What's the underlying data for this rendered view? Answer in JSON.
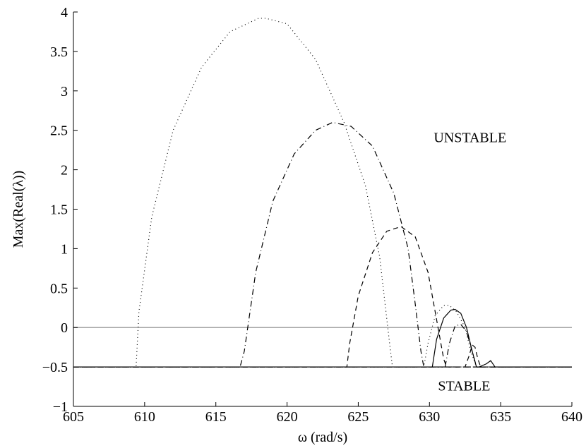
{
  "chart_data": {
    "type": "line",
    "title": "",
    "xlabel": "ω (rad/s)",
    "ylabel": "Max(Real(λ))",
    "xlim": [
      605,
      640
    ],
    "ylim": [
      -1,
      4
    ],
    "x_ticks": [
      605,
      610,
      615,
      620,
      625,
      630,
      635,
      640
    ],
    "y_ticks": [
      -1,
      -0.5,
      0,
      0.5,
      1,
      1.5,
      2,
      2.5,
      3,
      3.5,
      4
    ],
    "x_tick_labels": [
      "605",
      "610",
      "615",
      "620",
      "625",
      "630",
      "635",
      "640"
    ],
    "y_tick_labels": [
      "−1",
      "−0.5",
      "0",
      "0.5",
      "1",
      "1.5",
      "2",
      "2.5",
      "3",
      "3.5",
      "4"
    ],
    "grid": false,
    "legend": "none",
    "reference_line": {
      "y": 0,
      "color": "#a6a6a6"
    },
    "annotations": [
      {
        "text": "UNSTABLE",
        "x": 630.3,
        "y": 2.35
      },
      {
        "text": "STABLE",
        "x": 630.6,
        "y": -0.8
      }
    ],
    "series": [
      {
        "style": "dotted",
        "color": "#000000",
        "x": [
          605,
          609.4,
          609.6,
          610.5,
          612,
          614,
          616,
          618,
          618.5,
          620,
          622,
          624,
          625.5,
          626.5,
          627.2,
          627.4,
          630,
          633,
          640
        ],
        "y": [
          -0.5,
          -0.5,
          0.2,
          1.4,
          2.5,
          3.3,
          3.75,
          3.92,
          3.92,
          3.85,
          3.4,
          2.6,
          1.8,
          0.9,
          -0.2,
          -0.5,
          -0.5,
          -0.5,
          -0.5
        ]
      },
      {
        "style": "dashdot",
        "color": "#000000",
        "x": [
          605,
          616.7,
          617.0,
          617.8,
          619,
          620.5,
          622,
          623.2,
          624.5,
          626,
          627.5,
          628.5,
          629.0,
          629.4,
          629.6,
          640
        ],
        "y": [
          -0.5,
          -0.5,
          -0.3,
          0.7,
          1.6,
          2.2,
          2.5,
          2.6,
          2.55,
          2.3,
          1.7,
          1.0,
          0.3,
          -0.3,
          -0.5,
          -0.5
        ]
      },
      {
        "style": "dashed",
        "color": "#000000",
        "x": [
          605,
          624.2,
          624.4,
          625,
          626,
          627,
          628,
          629,
          629.9,
          630.5,
          631.0,
          631.2,
          640
        ],
        "y": [
          -0.5,
          -0.5,
          -0.2,
          0.4,
          0.95,
          1.22,
          1.28,
          1.15,
          0.7,
          0.1,
          -0.4,
          -0.5,
          -0.5
        ]
      },
      {
        "style": "dotted",
        "color": "#000000",
        "x": [
          605,
          629.6,
          629.9,
          630.4,
          631.0,
          631.4,
          631.9,
          632.5,
          632.9,
          633.3,
          640
        ],
        "y": [
          -0.5,
          -0.5,
          -0.2,
          0.15,
          0.28,
          0.28,
          0.2,
          0.0,
          -0.3,
          -0.5,
          -0.5
        ]
      },
      {
        "style": "solid",
        "color": "#000000",
        "x": [
          605,
          630.2,
          630.5,
          631.0,
          631.5,
          631.8,
          632.2,
          632.6,
          633.0,
          633.3,
          633.5,
          634.0,
          634.3,
          634.6,
          640
        ],
        "y": [
          -0.5,
          -0.5,
          -0.15,
          0.12,
          0.22,
          0.23,
          0.18,
          0.0,
          -0.3,
          -0.5,
          -0.5,
          -0.46,
          -0.42,
          -0.5,
          -0.5
        ]
      },
      {
        "style": "dashdot",
        "color": "#000000",
        "x": [
          605,
          631.1,
          631.4,
          631.8,
          632.2,
          632.6,
          633.0,
          633.3,
          640
        ],
        "y": [
          -0.5,
          -0.5,
          -0.2,
          0.02,
          0.04,
          -0.05,
          -0.3,
          -0.5,
          -0.5
        ]
      },
      {
        "style": "dashed",
        "color": "#000000",
        "x": [
          605,
          632.5,
          632.8,
          633.0,
          633.2,
          633.4,
          633.6,
          640
        ],
        "y": [
          -0.5,
          -0.5,
          -0.35,
          -0.22,
          -0.25,
          -0.4,
          -0.5,
          -0.5
        ]
      }
    ]
  }
}
